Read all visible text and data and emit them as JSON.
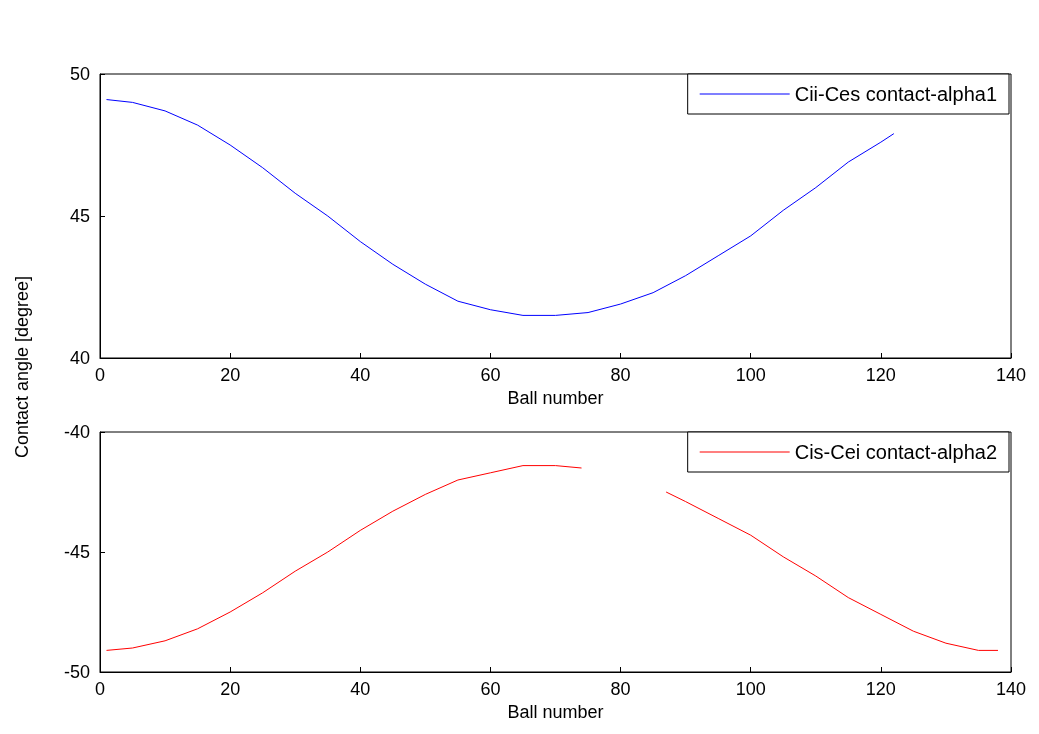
{
  "chart_data": [
    {
      "type": "line",
      "xlabel": "Ball number",
      "ylabel": "Contact angle [degree]",
      "xlim": [
        0,
        140
      ],
      "xticks": [
        0,
        20,
        40,
        60,
        80,
        100,
        120,
        140
      ],
      "ylim": [
        40,
        50
      ],
      "yticks": [
        40,
        45,
        50
      ],
      "grid": false,
      "legend": "top right",
      "marker": "none",
      "line_style": "solid",
      "series": [
        {
          "name": "Cii-Ces contact-alpha1",
          "color": "#0000ff",
          "x": [
            1,
            5,
            10,
            15,
            20,
            25,
            30,
            35,
            40,
            45,
            50,
            55,
            60,
            65,
            70,
            75,
            80,
            85,
            90,
            95,
            100,
            105,
            110,
            115,
            120,
            122
          ],
          "values": [
            49.1,
            49.0,
            48.7,
            48.2,
            47.5,
            46.7,
            45.8,
            45.0,
            44.1,
            43.3,
            42.6,
            42.0,
            41.7,
            41.5,
            41.5,
            41.6,
            41.9,
            42.3,
            42.9,
            43.6,
            44.3,
            45.2,
            46.0,
            46.9,
            47.6,
            47.9
          ]
        }
      ]
    },
    {
      "type": "line",
      "xlabel": "Ball number",
      "xlim": [
        0,
        140
      ],
      "xticks": [
        0,
        20,
        40,
        60,
        80,
        100,
        120,
        140
      ],
      "ylim": [
        -50,
        -40
      ],
      "yticks": [
        -50,
        -45,
        -40
      ],
      "grid": false,
      "legend": "top right",
      "marker": "none",
      "line_style": "solid",
      "series": [
        {
          "name": "Cis-Cei contact-alpha2",
          "color": "#ff0000",
          "x": [
            1,
            5,
            10,
            15,
            20,
            25,
            30,
            35,
            40,
            45,
            50,
            55,
            60,
            65,
            70,
            74,
            80,
            87,
            90,
            95,
            100,
            105,
            110,
            115,
            120,
            125,
            130,
            135,
            138
          ],
          "values": [
            -49.1,
            -49.0,
            -48.7,
            -48.2,
            -47.5,
            -46.7,
            -45.8,
            -45.0,
            -44.1,
            -43.3,
            -42.6,
            -42.0,
            -41.7,
            -41.4,
            -41.4,
            -41.5,
            null,
            -42.5,
            -42.9,
            -43.6,
            -44.3,
            -45.2,
            -46.0,
            -46.9,
            -47.6,
            -48.3,
            -48.8,
            -49.1,
            -49.1
          ]
        }
      ]
    }
  ]
}
